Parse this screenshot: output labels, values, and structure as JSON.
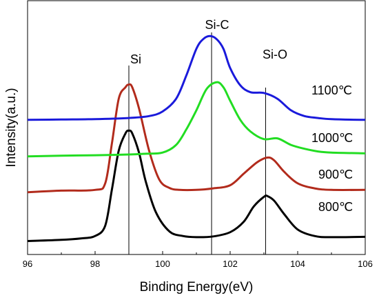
{
  "chart_data": {
    "type": "line",
    "xlabel": "Binding Energy(eV)",
    "ylabel": "Intensity(a.u.)",
    "xlim": [
      96,
      106
    ],
    "x_ticks": [
      "96",
      "98",
      "100",
      "102",
      "104",
      "106"
    ],
    "y_ticks_shown": false,
    "grid": false,
    "legend": "none; series labelled inline at right",
    "reference_lines": [
      {
        "label": "Si",
        "x": 99.0
      },
      {
        "label": "Si-C",
        "x": 101.45
      },
      {
        "label": "Si-O",
        "x": 103.05
      }
    ],
    "series": [
      {
        "name": "800℃",
        "color": "#000000",
        "x": [
          96,
          97,
          97.6,
          98.0,
          98.3,
          98.5,
          98.7,
          98.9,
          99.0,
          99.1,
          99.3,
          99.5,
          99.8,
          100.2,
          100.6,
          101.0,
          101.5,
          102.0,
          102.4,
          102.7,
          103.0,
          103.1,
          103.3,
          103.6,
          104.0,
          104.5,
          105.0,
          106
        ],
        "y": [
          0.05,
          0.08,
          0.12,
          0.18,
          0.45,
          1.4,
          2.4,
          2.85,
          2.92,
          2.85,
          2.35,
          1.6,
          0.8,
          0.3,
          0.18,
          0.15,
          0.17,
          0.28,
          0.55,
          0.95,
          1.2,
          1.22,
          1.1,
          0.75,
          0.35,
          0.18,
          0.15,
          0.16
        ]
      },
      {
        "name": "900℃",
        "color": "#b22b1c",
        "x": [
          96,
          97,
          98.0,
          98.3,
          98.5,
          98.7,
          98.9,
          99.0,
          99.1,
          99.3,
          99.6,
          99.9,
          100.2,
          100.5,
          101.0,
          101.5,
          102.0,
          102.4,
          102.8,
          103.1,
          103.3,
          103.6,
          104.0,
          104.5,
          105.0,
          106
        ],
        "y": [
          1.32,
          1.36,
          1.38,
          1.55,
          2.6,
          3.75,
          4.05,
          4.12,
          4.05,
          3.5,
          2.4,
          1.65,
          1.43,
          1.38,
          1.38,
          1.42,
          1.5,
          1.8,
          2.1,
          2.22,
          2.15,
          1.85,
          1.55,
          1.42,
          1.38,
          1.38
        ]
      },
      {
        "name": "1000℃",
        "color": "#22dd22",
        "x": [
          96,
          97,
          98,
          99,
          99.5,
          100.0,
          100.4,
          100.7,
          101.0,
          101.3,
          101.6,
          101.8,
          102.0,
          102.3,
          102.6,
          103.0,
          103.4,
          103.8,
          104.2,
          104.6,
          105.0,
          106
        ],
        "y": [
          2.25,
          2.27,
          2.28,
          2.3,
          2.32,
          2.35,
          2.55,
          2.95,
          3.45,
          4.0,
          4.18,
          4.05,
          3.7,
          3.2,
          2.9,
          2.7,
          2.72,
          2.55,
          2.45,
          2.38,
          2.35,
          2.33
        ]
      },
      {
        "name": "1100℃",
        "color": "#1a1adb",
        "x": [
          96,
          97,
          98,
          99,
          99.6,
          100.0,
          100.4,
          100.7,
          101.0,
          101.2,
          101.4,
          101.6,
          101.8,
          102.0,
          102.3,
          102.6,
          103.0,
          103.4,
          103.8,
          104.2,
          104.6,
          105.0,
          106
        ],
        "y": [
          3.2,
          3.21,
          3.22,
          3.25,
          3.3,
          3.42,
          3.75,
          4.35,
          5.05,
          5.3,
          5.38,
          5.3,
          5.05,
          4.55,
          4.1,
          3.92,
          3.9,
          3.75,
          3.45,
          3.3,
          3.25,
          3.22,
          3.2
        ]
      }
    ],
    "y_range": [
      -0.3,
      6.3
    ]
  }
}
